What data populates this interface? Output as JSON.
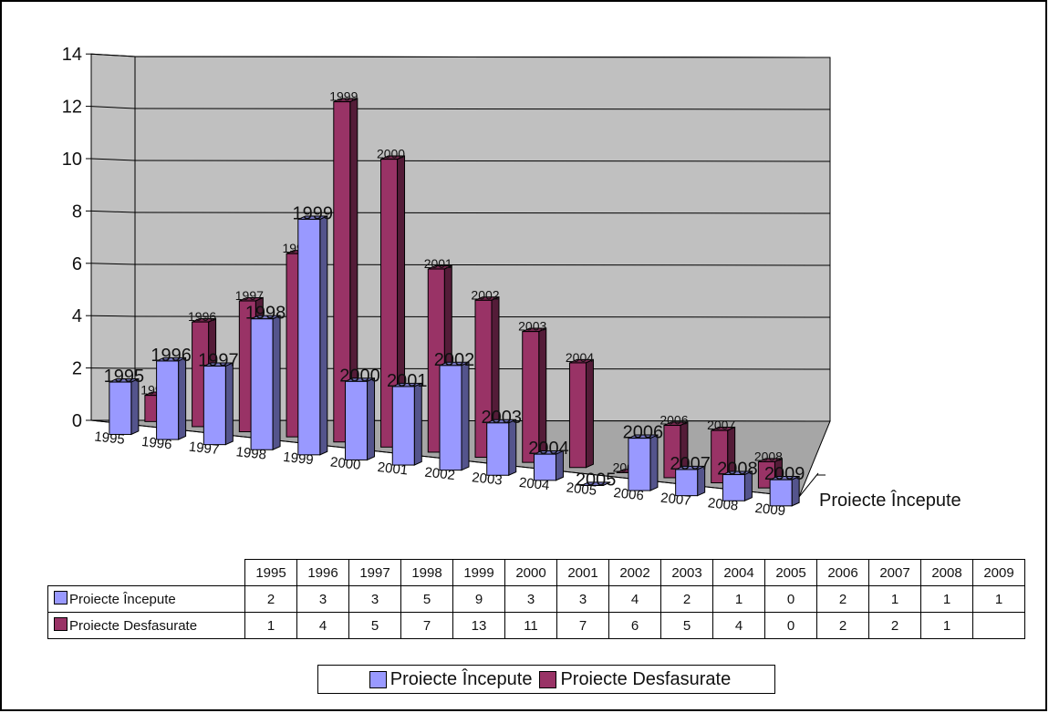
{
  "chart_data": {
    "type": "bar",
    "categories": [
      "1995",
      "1996",
      "1997",
      "1998",
      "1999",
      "2000",
      "2001",
      "2002",
      "2003",
      "2004",
      "2005",
      "2006",
      "2007",
      "2008",
      "2009"
    ],
    "series": [
      {
        "name": "Proiecte Începute",
        "color": "#9999ff",
        "values": [
          2,
          3,
          3,
          5,
          9,
          3,
          3,
          4,
          2,
          1,
          0,
          2,
          1,
          1,
          1
        ],
        "table_values": [
          "2",
          "3",
          "3",
          "5",
          "9",
          "3",
          "3",
          "4",
          "2",
          "1",
          "0",
          "2",
          "1",
          "1",
          "1"
        ]
      },
      {
        "name": "Proiecte Desfasurate",
        "color": "#993366",
        "values": [
          1,
          4,
          5,
          7,
          13,
          11,
          7,
          6,
          5,
          4,
          0,
          2,
          2,
          1,
          null
        ],
        "table_values": [
          "1",
          "4",
          "5",
          "7",
          "13",
          "11",
          "7",
          "6",
          "5",
          "4",
          "0",
          "2",
          "2",
          "1",
          ""
        ]
      }
    ],
    "ylim": [
      0,
      14
    ],
    "yticks": [
      "0",
      "2",
      "4",
      "6",
      "8",
      "10",
      "12",
      "14"
    ],
    "depth_axis_label": "Proiecte Începute",
    "grid": true,
    "legend": "bottom",
    "three_d": true
  }
}
